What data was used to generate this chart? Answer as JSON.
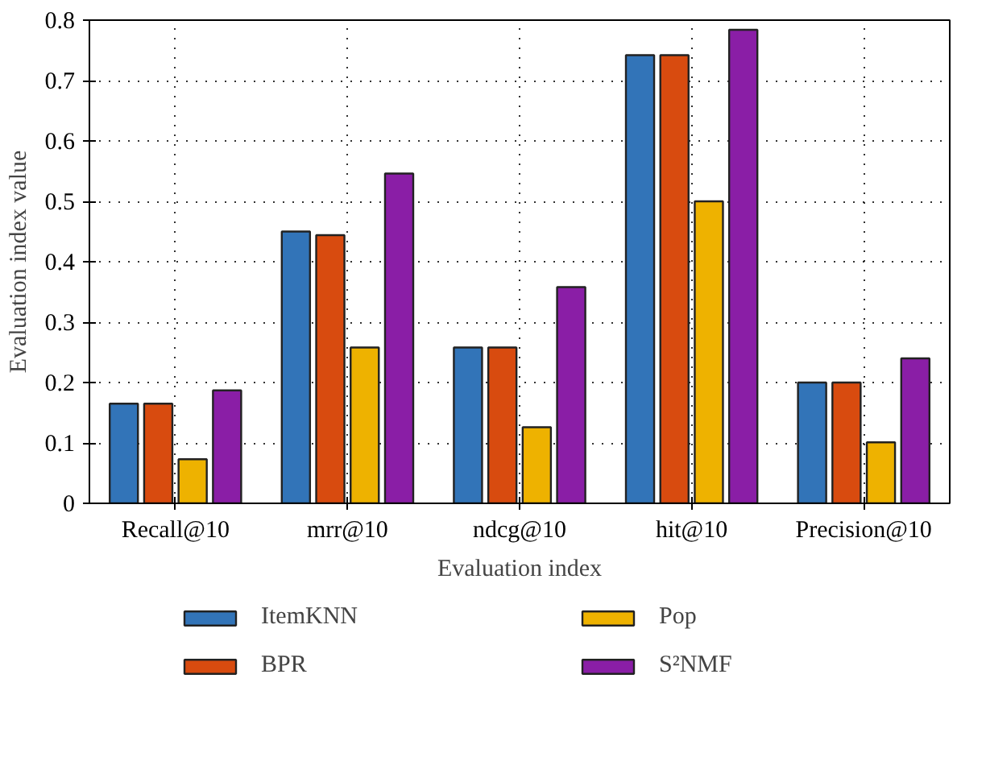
{
  "chart_data": {
    "type": "bar",
    "xlabel": "Evaluation index",
    "ylabel": "Evaluation index value",
    "categories": [
      "Recall@10",
      "mrr@10",
      "ndcg@10",
      "hit@10",
      "Precision@10"
    ],
    "series": [
      {
        "name": "ItemKNN",
        "color": "#3274b8",
        "values": [
          0.165,
          0.45,
          0.258,
          0.742,
          0.2
        ]
      },
      {
        "name": "BPR",
        "color": "#d84b0f",
        "values": [
          0.165,
          0.444,
          0.258,
          0.742,
          0.2
        ]
      },
      {
        "name": "Pop",
        "color": "#eeb200",
        "values": [
          0.073,
          0.258,
          0.126,
          0.5,
          0.101
        ]
      },
      {
        "name": "S²NMF",
        "color": "#8a1ea6",
        "values": [
          0.187,
          0.546,
          0.358,
          0.784,
          0.24
        ]
      }
    ],
    "ylim": [
      0,
      0.8
    ],
    "yticks": [
      0,
      0.1,
      0.2,
      0.3,
      0.4,
      0.5,
      0.6,
      0.7,
      0.8
    ],
    "grid": true,
    "legend": "bottom"
  }
}
